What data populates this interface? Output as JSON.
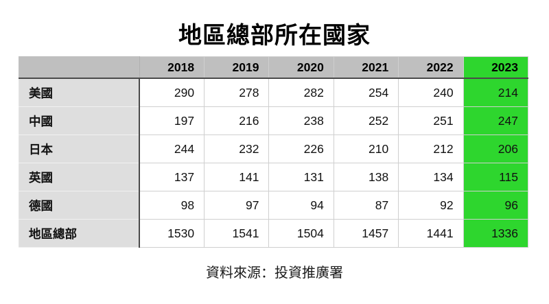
{
  "title": "地區總部所在國家",
  "footer": "資料來源：投資推廣署",
  "colors": {
    "header_bg": "#bfbfbf",
    "label_bg": "#dedede",
    "highlight_bg": "#2ed62e",
    "border_light": "#cfcfcf",
    "border_dark": "#4a4a4a",
    "text": "#000000"
  },
  "chart_data": {
    "type": "table",
    "title": "地區總部所在國家",
    "columns": [
      "",
      "2018",
      "2019",
      "2020",
      "2021",
      "2022",
      "2023"
    ],
    "highlighted_column": "2023",
    "rows": [
      {
        "label": "美國",
        "values": [
          290,
          278,
          282,
          254,
          240,
          214
        ]
      },
      {
        "label": "中國",
        "values": [
          197,
          216,
          238,
          252,
          251,
          247
        ]
      },
      {
        "label": "日本",
        "values": [
          244,
          232,
          226,
          210,
          212,
          206
        ]
      },
      {
        "label": "英國",
        "values": [
          137,
          141,
          131,
          138,
          134,
          115
        ]
      },
      {
        "label": "德國",
        "values": [
          98,
          97,
          94,
          87,
          92,
          96
        ]
      },
      {
        "label": "地區總部",
        "values": [
          1530,
          1541,
          1504,
          1457,
          1441,
          1336
        ]
      }
    ],
    "source": "資料來源：投資推廣署",
    "legend_position": "none",
    "grid": true
  }
}
